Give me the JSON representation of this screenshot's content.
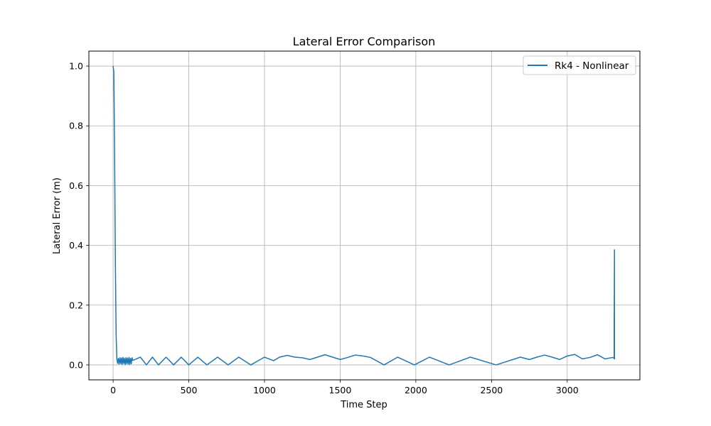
{
  "chart_data": {
    "type": "line",
    "title": "Lateral Error Comparison",
    "xlabel": "Time Step",
    "ylabel": "Lateral Error (m)",
    "xlim": [
      -160,
      3480
    ],
    "ylim": [
      -0.05,
      1.05
    ],
    "xticks": [
      0,
      500,
      1000,
      1500,
      2000,
      2500,
      3000
    ],
    "yticks": [
      0.0,
      0.2,
      0.4,
      0.6,
      0.8,
      1.0
    ],
    "xtick_labels": [
      "0",
      "500",
      "1000",
      "1500",
      "2000",
      "2500",
      "3000"
    ],
    "ytick_labels": [
      "0.0",
      "0.2",
      "0.4",
      "0.6",
      "0.8",
      "1.0"
    ],
    "grid": true,
    "legend_position": "top-right",
    "series": [
      {
        "name": "Rk4 - Nonlinear",
        "color": "#1f77b4",
        "x": [
          0,
          5,
          10,
          15,
          20,
          25,
          30,
          35,
          40,
          45,
          50,
          55,
          60,
          65,
          70,
          75,
          80,
          85,
          90,
          95,
          100,
          105,
          110,
          115,
          120,
          125,
          130,
          180,
          220,
          260,
          300,
          350,
          400,
          450,
          500,
          560,
          620,
          690,
          760,
          830,
          910,
          1000,
          1060,
          1100,
          1150,
          1200,
          1250,
          1300,
          1350,
          1400,
          1450,
          1500,
          1550,
          1600,
          1650,
          1700,
          1790,
          1880,
          1990,
          2090,
          2220,
          2360,
          2530,
          2690,
          2750,
          2800,
          2850,
          2900,
          2950,
          3000,
          3050,
          3100,
          3150,
          3200,
          3250,
          3300,
          3310,
          3310,
          3312,
          3312,
          3314
        ],
        "values": [
          1.0,
          0.98,
          0.7,
          0.35,
          0.1,
          0.02,
          0.005,
          0.022,
          0.003,
          0.024,
          0.004,
          0.023,
          0.002,
          0.025,
          0.005,
          0.022,
          0.001,
          0.024,
          0.004,
          0.023,
          0.003,
          0.025,
          0.002,
          0.022,
          0.004,
          0.024,
          0.015,
          0.026,
          0.0,
          0.026,
          0.0,
          0.026,
          0.0,
          0.026,
          0.0,
          0.026,
          0.0,
          0.026,
          0.0,
          0.026,
          0.0,
          0.026,
          0.014,
          0.026,
          0.032,
          0.026,
          0.024,
          0.018,
          0.026,
          0.034,
          0.026,
          0.018,
          0.025,
          0.033,
          0.03,
          0.025,
          0.0,
          0.026,
          0.0,
          0.026,
          0.0,
          0.026,
          0.0,
          0.026,
          0.018,
          0.026,
          0.033,
          0.026,
          0.018,
          0.03,
          0.035,
          0.02,
          0.025,
          0.034,
          0.02,
          0.025,
          0.022,
          0.12,
          0.385,
          0.02,
          0.025
        ]
      }
    ]
  }
}
